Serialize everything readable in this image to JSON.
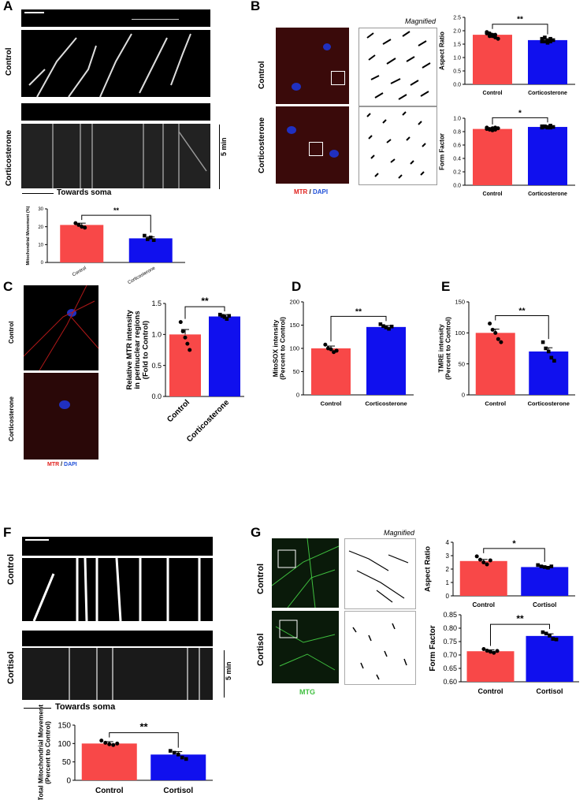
{
  "panels": {
    "A": "A",
    "B": "B",
    "C": "C",
    "D": "D",
    "E": "E",
    "F": "F",
    "G": "G"
  },
  "labels": {
    "control": "Control",
    "corticosterone": "Corticosterone",
    "cortisol": "Cortisol",
    "towards_soma": "Towards soma",
    "five_min": "5 min",
    "magnified": "Magnified",
    "mtr": "MTR",
    "slash": " / ",
    "dapi": "DAPI",
    "mtg": "MTG"
  },
  "colors": {
    "red": "#f84848",
    "blue": "#1010ee",
    "mtr": "#e0201c",
    "dapi": "#1f4fd8",
    "mtg": "#3fbf3f"
  },
  "chart_data": [
    {
      "id": "A",
      "type": "bar",
      "categories": [
        "Control",
        "Corticosterone"
      ],
      "values": [
        21,
        13.5
      ],
      "errors": [
        1,
        0.8
      ],
      "ylabel": "Mitochondrial Movement (%)",
      "ylim": [
        0,
        30
      ],
      "yticks": [
        0,
        10,
        20,
        30
      ],
      "sig": "**",
      "points": [
        [
          22,
          21,
          20,
          19.5
        ],
        [
          15,
          13,
          14,
          12.5
        ]
      ]
    },
    {
      "id": "B1",
      "type": "bar",
      "categories": [
        "Control",
        "Corticosterone"
      ],
      "values": [
        1.85,
        1.65
      ],
      "errors": [
        0.04,
        0.04
      ],
      "ylabel": "Aspect Ratio",
      "ylim": [
        0,
        2.5
      ],
      "yticks": [
        0.0,
        0.5,
        1.0,
        1.5,
        2.0,
        2.5
      ],
      "sig": "**",
      "points": [
        [
          1.95,
          1.9,
          1.8,
          1.85,
          1.7,
          1.9,
          1.8,
          1.85,
          1.75
        ],
        [
          1.7,
          1.6,
          1.55,
          1.7,
          1.65,
          1.6,
          1.75,
          1.65,
          1.6
        ]
      ]
    },
    {
      "id": "B2",
      "type": "bar",
      "categories": [
        "Control",
        "Corticosterone"
      ],
      "values": [
        0.84,
        0.87
      ],
      "errors": [
        0.01,
        0.01
      ],
      "ylabel": "Form Factor",
      "ylim": [
        0,
        1.0
      ],
      "yticks": [
        0.0,
        0.2,
        0.4,
        0.6,
        0.8,
        1.0
      ],
      "sig": "*",
      "points": [
        [
          0.86,
          0.84,
          0.82,
          0.83,
          0.85,
          0.84,
          0.83,
          0.85,
          0.86
        ],
        [
          0.88,
          0.87,
          0.86,
          0.89,
          0.87,
          0.86,
          0.88,
          0.87,
          0.86
        ]
      ]
    },
    {
      "id": "C",
      "type": "bar",
      "categories": [
        "Control",
        "Corticosterone"
      ],
      "values": [
        1.0,
        1.29
      ],
      "errors": [
        0.08,
        0.03
      ],
      "ylabel": "Relative MTR intensity in perinuclear regions (Fold to Control)",
      "ylim": [
        0,
        1.5
      ],
      "yticks": [
        0.0,
        0.5,
        1.0,
        1.5
      ],
      "sig": "**",
      "points": [
        [
          1.2,
          1.05,
          0.95,
          0.85,
          0.75
        ],
        [
          1.32,
          1.3,
          1.28,
          1.25,
          1.3
        ]
      ]
    },
    {
      "id": "D",
      "type": "bar",
      "categories": [
        "Control",
        "Corticosterone"
      ],
      "values": [
        100,
        146
      ],
      "errors": [
        5,
        3
      ],
      "ylabel": "MitoSOX intensity (Percent to Control)",
      "ylim": [
        0,
        200
      ],
      "yticks": [
        0,
        50,
        100,
        150,
        200
      ],
      "sig": "**",
      "points": [
        [
          108,
          100,
          98,
          92,
          95
        ],
        [
          152,
          148,
          145,
          142,
          147
        ]
      ]
    },
    {
      "id": "E",
      "type": "bar",
      "categories": [
        "Control",
        "Corticosterone"
      ],
      "values": [
        100,
        70
      ],
      "errors": [
        6,
        6
      ],
      "ylabel": "TMRE intensity (Percent to Control)",
      "ylim": [
        0,
        150
      ],
      "yticks": [
        0,
        50,
        100,
        150
      ],
      "sig": "**",
      "points": [
        [
          115,
          105,
          100,
          90,
          85
        ],
        [
          85,
          75,
          70,
          60,
          55
        ]
      ]
    },
    {
      "id": "F",
      "type": "bar",
      "categories": [
        "Control",
        "Cortisol"
      ],
      "values": [
        100,
        70
      ],
      "errors": [
        5,
        8
      ],
      "ylabel": "Total Mitochondrial Movement (Percent to Control)",
      "ylim": [
        0,
        150
      ],
      "yticks": [
        0,
        50,
        100,
        150
      ],
      "sig": "**",
      "points": [
        [
          108,
          102,
          98,
          96,
          100
        ],
        [
          80,
          75,
          70,
          62,
          58
        ]
      ]
    },
    {
      "id": "G1",
      "type": "bar",
      "categories": [
        "Control",
        "Cortisol"
      ],
      "values": [
        2.6,
        2.15
      ],
      "errors": [
        0.12,
        0.05
      ],
      "ylabel": "Aspect Ratio",
      "ylim": [
        0,
        4
      ],
      "yticks": [
        0,
        1,
        2,
        3,
        4
      ],
      "sig": "*",
      "points": [
        [
          2.95,
          2.7,
          2.5,
          2.35,
          2.65
        ],
        [
          2.3,
          2.2,
          2.15,
          2.1,
          2.2
        ]
      ]
    },
    {
      "id": "G2",
      "type": "bar",
      "categories": [
        "Control",
        "Cortisol"
      ],
      "values": [
        0.714,
        0.771
      ],
      "errors": [
        0.005,
        0.008
      ],
      "ylabel": "Form Factor",
      "ylim": [
        0.6,
        0.85
      ],
      "yticks": [
        0.6,
        0.65,
        0.7,
        0.75,
        0.8,
        0.85
      ],
      "sig": "**",
      "points": [
        [
          0.722,
          0.716,
          0.712,
          0.708,
          0.715
        ],
        [
          0.785,
          0.78,
          0.772,
          0.76,
          0.758
        ]
      ]
    }
  ]
}
